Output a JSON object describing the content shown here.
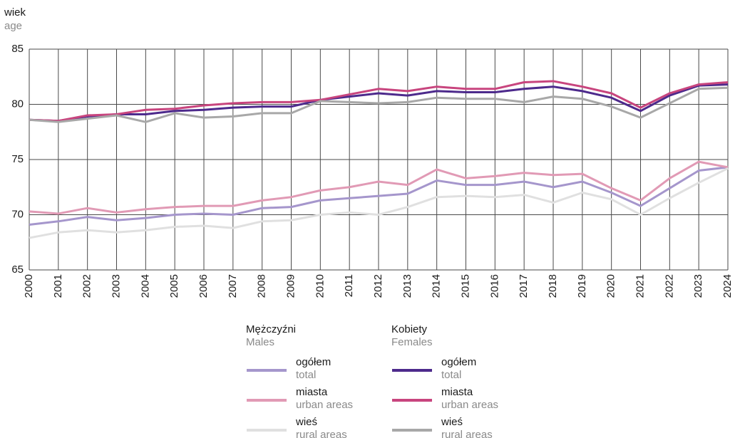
{
  "chart_data": {
    "type": "line",
    "y_label": "wiek",
    "y_label_en": "age",
    "categories": [
      "2000",
      "2001",
      "2002",
      "2003",
      "2004",
      "2005",
      "2006",
      "2007",
      "2008",
      "2009",
      "2010",
      "2011",
      "2012",
      "2013",
      "2014",
      "2015",
      "2016",
      "2017",
      "2018",
      "2019",
      "2020",
      "2021",
      "2022",
      "2023",
      "2024"
    ],
    "ylim": [
      65,
      85
    ],
    "yticks": [
      65,
      70,
      75,
      80,
      85
    ],
    "grid": true,
    "legend_groups": [
      {
        "name": "Mężczyźni",
        "name_en": "Males"
      },
      {
        "name": "Kobiety",
        "name_en": "Females"
      }
    ],
    "series": [
      {
        "name": "ogółem",
        "name_en": "total",
        "group": 0,
        "color": "#a596cc",
        "values": [
          69.1,
          69.4,
          69.8,
          69.5,
          69.7,
          70.0,
          70.1,
          70.0,
          70.6,
          70.7,
          71.3,
          71.5,
          71.7,
          71.9,
          73.1,
          72.7,
          72.7,
          73.0,
          72.5,
          73.0,
          72.0,
          70.8,
          72.4,
          74.0,
          74.3
        ]
      },
      {
        "name": "miasta",
        "name_en": "urban areas",
        "group": 0,
        "color": "#e19ab5",
        "values": [
          70.3,
          70.1,
          70.6,
          70.2,
          70.5,
          70.7,
          70.8,
          70.8,
          71.3,
          71.6,
          72.2,
          72.5,
          73.0,
          72.7,
          74.1,
          73.3,
          73.5,
          73.8,
          73.6,
          73.7,
          72.4,
          71.3,
          73.3,
          74.8,
          74.3
        ]
      },
      {
        "name": "wieś",
        "name_en": "rural areas",
        "group": 0,
        "color": "#e0e0e0",
        "values": [
          67.9,
          68.4,
          68.6,
          68.4,
          68.6,
          68.9,
          69.0,
          68.8,
          69.4,
          69.5,
          70.0,
          70.2,
          70.0,
          70.7,
          71.6,
          71.7,
          71.6,
          71.8,
          71.1,
          72.0,
          71.4,
          70.0,
          71.5,
          72.9,
          74.2
        ]
      },
      {
        "name": "ogółem",
        "name_en": "total",
        "group": 1,
        "color": "#4d2a8c",
        "values": [
          78.6,
          78.5,
          78.9,
          79.1,
          79.1,
          79.4,
          79.5,
          79.7,
          79.8,
          79.8,
          80.4,
          80.7,
          81.0,
          80.8,
          81.2,
          81.1,
          81.1,
          81.4,
          81.6,
          81.2,
          80.6,
          79.4,
          80.8,
          81.7,
          81.8
        ]
      },
      {
        "name": "miasta",
        "name_en": "urban areas",
        "group": 1,
        "color": "#c8457e",
        "values": [
          78.6,
          78.5,
          79.0,
          79.1,
          79.5,
          79.6,
          79.9,
          80.1,
          80.2,
          80.2,
          80.4,
          80.9,
          81.4,
          81.2,
          81.6,
          81.4,
          81.4,
          82.0,
          82.1,
          81.6,
          81.0,
          79.7,
          81.0,
          81.8,
          82.0
        ]
      },
      {
        "name": "wieś",
        "name_en": "rural areas",
        "group": 1,
        "color": "#a8a8a8",
        "values": [
          78.6,
          78.4,
          78.7,
          79.0,
          78.4,
          79.2,
          78.8,
          78.9,
          79.2,
          79.2,
          80.3,
          80.2,
          80.1,
          80.2,
          80.6,
          80.5,
          80.5,
          80.2,
          80.7,
          80.5,
          79.8,
          78.8,
          80.1,
          81.4,
          81.5
        ]
      }
    ]
  }
}
